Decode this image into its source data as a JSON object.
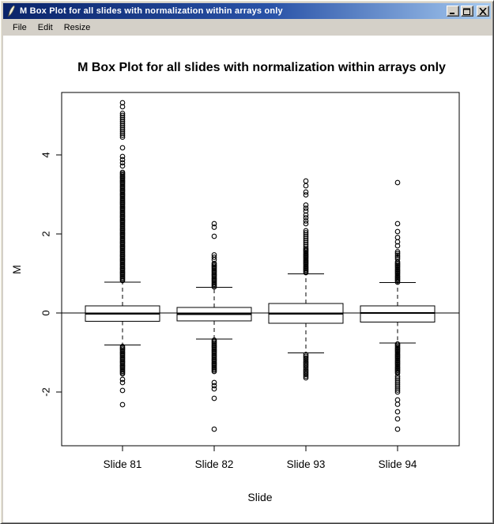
{
  "window": {
    "title": "M Box Plot for all slides with normalization within arrays only"
  },
  "icons": {
    "window_icon": "feather-icon",
    "minimize": "minimize-icon",
    "maximize": "maximize-icon",
    "close": "close-icon"
  },
  "menu": {
    "items": [
      {
        "label": "File"
      },
      {
        "label": "Edit"
      },
      {
        "label": "Resize"
      }
    ]
  },
  "chart_data": {
    "type": "boxplot",
    "title": "M Box Plot for all slides with normalization within arrays only",
    "xlabel": "Slide",
    "ylabel": "M",
    "categories": [
      "Slide 81",
      "Slide 82",
      "Slide 93",
      "Slide 94"
    ],
    "y_ticks": [
      -2,
      0,
      2,
      4
    ],
    "ylim": [
      -3.35,
      5.55
    ],
    "reference_line_y": 0,
    "grid": false,
    "boxes": [
      {
        "label": "Slide 81",
        "median": -0.02,
        "q1": -0.21,
        "q3": 0.18,
        "whisker_low": -0.81,
        "whisker_high": 0.78,
        "outlier_bands": [
          {
            "from": 0.82,
            "to": 3.56,
            "step": 0.033
          },
          {
            "from": 3.72,
            "to": 3.96,
            "step": 0.08
          },
          {
            "from": 4.45,
            "to": 5.08,
            "step": 0.05
          },
          {
            "from": -1.54,
            "to": -0.84,
            "step": 0.033
          }
        ],
        "outlier_points": [
          5.32,
          5.22,
          4.18,
          -1.68,
          -1.76,
          -1.96,
          -2.32
        ]
      },
      {
        "label": "Slide 82",
        "median": -0.03,
        "q1": -0.2,
        "q3": 0.14,
        "whisker_low": -0.66,
        "whisker_high": 0.65,
        "outlier_bands": [
          {
            "from": 0.66,
            "to": 1.28,
            "step": 0.033
          },
          {
            "from": -1.48,
            "to": -0.68,
            "step": 0.033
          }
        ],
        "outlier_points": [
          1.35,
          1.41,
          1.47,
          1.94,
          2.17,
          2.26,
          -1.76,
          -1.84,
          -1.92,
          -2.16,
          -2.94
        ]
      },
      {
        "label": "Slide 93",
        "median": -0.02,
        "q1": -0.26,
        "q3": 0.24,
        "whisker_low": -1.01,
        "whisker_high": 0.99,
        "outlier_bands": [
          {
            "from": 1.02,
            "to": 1.64,
            "step": 0.032
          },
          {
            "from": 1.68,
            "to": 2.12,
            "step": 0.05
          },
          {
            "from": -1.64,
            "to": -1.04,
            "step": 0.042
          }
        ],
        "outlier_points": [
          2.26,
          2.33,
          2.41,
          2.48,
          2.58,
          2.65,
          2.73,
          2.99,
          3.06,
          3.22,
          3.34
        ]
      },
      {
        "label": "Slide 94",
        "median": 0.0,
        "q1": -0.23,
        "q3": 0.18,
        "whisker_low": -0.76,
        "whisker_high": 0.77,
        "outlier_bands": [
          {
            "from": 0.78,
            "to": 1.32,
            "step": 0.032
          },
          {
            "from": 1.37,
            "to": 1.56,
            "step": 0.045
          },
          {
            "from": -1.52,
            "to": -0.78,
            "step": 0.032
          },
          {
            "from": -2.0,
            "to": -1.56,
            "step": 0.05
          }
        ],
        "outlier_points": [
          1.7,
          1.8,
          1.91,
          2.06,
          2.26,
          3.3,
          -2.2,
          -2.31,
          -2.5,
          -2.68,
          -2.94
        ]
      }
    ]
  },
  "colors": {
    "titlebar_left": "#0a246a",
    "titlebar_right": "#a6caf0",
    "chrome": "#d4d0c8",
    "plot_background": "#ffffff",
    "plot_stroke": "#000000"
  }
}
